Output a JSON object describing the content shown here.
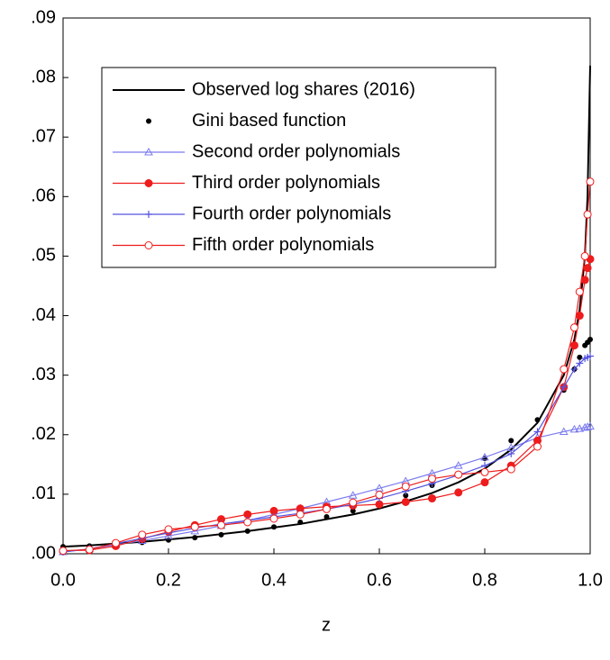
{
  "chart_data": {
    "type": "line",
    "x_label": "z",
    "x": [
      0,
      0.05,
      0.1,
      0.15,
      0.2,
      0.25,
      0.3,
      0.35,
      0.4,
      0.45,
      0.5,
      0.55,
      0.6,
      0.65,
      0.7,
      0.75,
      0.8,
      0.85,
      0.9,
      0.95,
      0.97,
      0.98,
      0.99,
      0.995,
      1.0
    ],
    "series": [
      {
        "name": "Observed log shares (2016)",
        "color": "#000000",
        "line": true,
        "marker": "none",
        "values": [
          0.0012,
          0.0014,
          0.0017,
          0.002,
          0.0024,
          0.0028,
          0.0033,
          0.0038,
          0.0044,
          0.005,
          0.0058,
          0.0066,
          0.0076,
          0.0088,
          0.0102,
          0.012,
          0.0143,
          0.0175,
          0.022,
          0.03,
          0.036,
          0.041,
          0.05,
          0.06,
          0.082
        ]
      },
      {
        "name": "Gini based function",
        "color": "#000000",
        "line": false,
        "marker": "dot",
        "values": [
          0.0012,
          0.0013,
          0.0016,
          0.0019,
          0.0023,
          0.0027,
          0.0032,
          0.0038,
          0.0045,
          0.0053,
          0.0062,
          0.0072,
          0.0084,
          0.0098,
          0.0115,
          0.0135,
          0.016,
          0.019,
          0.0225,
          0.0275,
          0.031,
          0.033,
          0.035,
          0.0355,
          0.036
        ]
      },
      {
        "name": "Second order polynomials",
        "color": "#7b7bef",
        "line": true,
        "marker": "triangle",
        "values": [
          0.0003,
          0.0008,
          0.0015,
          0.0022,
          0.003,
          0.0038,
          0.0047,
          0.0056,
          0.0066,
          0.0076,
          0.0087,
          0.0098,
          0.011,
          0.0122,
          0.0135,
          0.0148,
          0.0162,
          0.0178,
          0.0195,
          0.0205,
          0.0209,
          0.021,
          0.0212,
          0.0213,
          0.0214
        ]
      },
      {
        "name": "Third order polynomials",
        "color": "#ee1c1c",
        "line": true,
        "marker": "circle-filled",
        "values": [
          0.0005,
          0.0006,
          0.0013,
          0.0025,
          0.0037,
          0.0048,
          0.0058,
          0.0066,
          0.0072,
          0.0076,
          0.0079,
          0.0081,
          0.0083,
          0.0087,
          0.0093,
          0.0103,
          0.012,
          0.0148,
          0.019,
          0.028,
          0.035,
          0.04,
          0.046,
          0.048,
          0.0495
        ]
      },
      {
        "name": "Fourth order polynomials",
        "color": "#5555e0",
        "line": true,
        "marker": "plus",
        "values": [
          0.0003,
          0.0008,
          0.0017,
          0.0026,
          0.0035,
          0.0043,
          0.005,
          0.0056,
          0.0062,
          0.0068,
          0.0075,
          0.0083,
          0.0093,
          0.0105,
          0.0118,
          0.0132,
          0.0148,
          0.0168,
          0.0205,
          0.028,
          0.031,
          0.032,
          0.0328,
          0.033,
          0.0332
        ]
      },
      {
        "name": "Fifth order polynomials",
        "color": "#ee1c1c",
        "line": true,
        "marker": "circle-open",
        "values": [
          0.0005,
          0.0007,
          0.0018,
          0.0032,
          0.0041,
          0.0045,
          0.0048,
          0.0053,
          0.0059,
          0.0066,
          0.0075,
          0.0086,
          0.0099,
          0.0113,
          0.0126,
          0.0133,
          0.0137,
          0.0142,
          0.018,
          0.031,
          0.038,
          0.044,
          0.05,
          0.057,
          0.0625
        ]
      }
    ],
    "xlim": [
      0,
      1.0
    ],
    "xticks": [
      {
        "value": 0,
        "label": "0.0"
      },
      {
        "value": 0.2,
        "label": "0.2"
      },
      {
        "value": 0.4,
        "label": "0.4"
      },
      {
        "value": 0.6,
        "label": "0.6"
      },
      {
        "value": 0.8,
        "label": "0.8"
      },
      {
        "value": 1.0,
        "label": "1.0"
      }
    ],
    "ylim": [
      0,
      0.09
    ],
    "yticks": [
      {
        "value": 0,
        "label": ".00"
      },
      {
        "value": 0.01,
        "label": ".01"
      },
      {
        "value": 0.02,
        "label": ".02"
      },
      {
        "value": 0.03,
        "label": ".03"
      },
      {
        "value": 0.04,
        "label": ".04"
      },
      {
        "value": 0.05,
        "label": ".05"
      },
      {
        "value": 0.06,
        "label": ".06"
      },
      {
        "value": 0.07,
        "label": ".07"
      },
      {
        "value": 0.08,
        "label": ".08"
      },
      {
        "value": 0.09,
        "label": ".09"
      }
    ],
    "grid": false,
    "legend": "upper-left"
  }
}
